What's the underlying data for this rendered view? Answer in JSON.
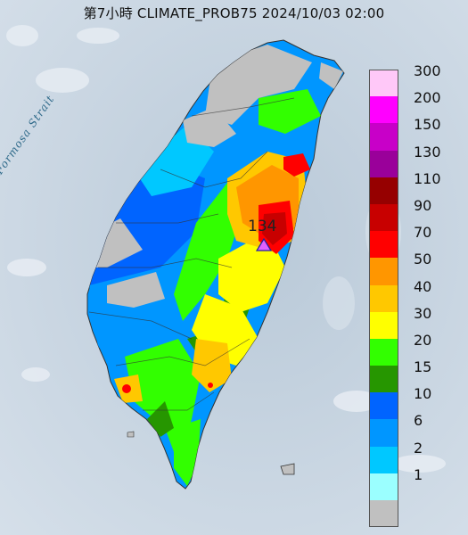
{
  "title": "第7小時  CLIMATE_PROB75 2024/10/03 02:00",
  "sea_label": "Formosa Strait",
  "max_value_label": "134",
  "legend": {
    "items": [
      {
        "label": "300",
        "color": "#ffc8f8"
      },
      {
        "label": "200",
        "color": "#ff00ff"
      },
      {
        "label": "150",
        "color": "#c800c8"
      },
      {
        "label": "130",
        "color": "#9a009a"
      },
      {
        "label": "110",
        "color": "#960000"
      },
      {
        "label": "90",
        "color": "#c80000"
      },
      {
        "label": "70",
        "color": "#ff0000"
      },
      {
        "label": "50",
        "color": "#ff9600"
      },
      {
        "label": "40",
        "color": "#ffc800"
      },
      {
        "label": "30",
        "color": "#ffff00"
      },
      {
        "label": "20",
        "color": "#32ff00"
      },
      {
        "label": "15",
        "color": "#269600"
      },
      {
        "label": "10",
        "color": "#0064ff"
      },
      {
        "label": "6",
        "color": "#0096ff"
      },
      {
        "label": "2",
        "color": "#00c8ff"
      },
      {
        "label": "1",
        "color": "#9bffff"
      },
      {
        "label": "",
        "color": "#c0c0c0"
      }
    ]
  }
}
